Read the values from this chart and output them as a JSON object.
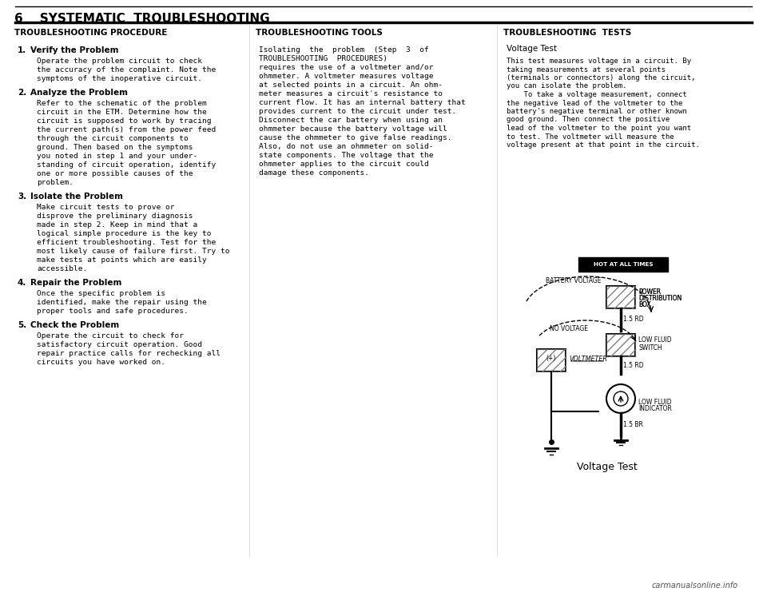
{
  "page_header": "6    SYSTEMATIC  TROUBLESHOOTING",
  "bg_color": "#ffffff",
  "col1_header": "TROUBLESHOOTING PROCEDURE",
  "col1_items": [
    {
      "num": "1.",
      "bold": "Verify the Problem",
      "body": "Operate the problem circuit to check\nthe accuracy of the complaint. Note the\nsymptoms of the inoperative circuit."
    },
    {
      "num": "2.",
      "bold": "Analyze the Problem",
      "body": "Refer to the schematic of the problem\ncircuit in the ETM. Determine how the\ncircuit is supposed to work by tracing\nthe current path(s) from the power feed\nthrough the circuit components to\nground. Then based on the symptoms\nyou noted in step 1 and your under-\nstanding of circuit operation, identify\none or more possible causes of the\nproblem."
    },
    {
      "num": "3.",
      "bold": "Isolate the Problem",
      "body": "Make circuit tests to prove or\ndisprove the preliminary diagnosis\nmade in step 2. Keep in mind that a\nlogical simple procedure is the key to\nefficient troubleshooting. Test for the\nmost likely cause of failure first. Try to\nmake tests at points which are easily\naccessible."
    },
    {
      "num": "4.",
      "bold": "Repair the Problem",
      "body": "Once the specific problem is\nidentified, make the repair using the\nproper tools and safe procedures."
    },
    {
      "num": "5.",
      "bold": "Check the Problem",
      "body": "Operate the circuit to check for\nsatisfactory circuit operation. Good\nrepair practice calls for rechecking all\ncircuits you have worked on."
    }
  ],
  "col2_header": "TROUBLESHOOTING TOOLS",
  "col2_body": "Isolating  the  problem  (Step  3  of\nTROUBLESHOOTING  PROCEDURES)\nrequires the use of a voltmeter and/or\nohmmeter. A voltmeter measures voltage\nat selected points in a circuit. An ohm-\nmeter measures a circuit's resistance to\ncurrent flow. It has an internal battery that\nprovides current to the circuit under test.\nDisconnect the car battery when using an\nohmmeter because the battery voltage will\ncause the ohmmeter to give false readings.\nAlso, do not use an ohmmeter on solid-\nstate components. The voltage that the\nohmmeter applies to the circuit could\ndamage these components.",
  "col2_bold_words": [
    "voltmeter",
    "ohmmeter"
  ],
  "col3_header": "TROUBLESHOOTING  TESTS",
  "col3_subheader": "Voltage Test",
  "col3_body": "This test measures voltage in a circuit. By\ntaking measurements at several points\n(terminals or connectors) along the circuit,\nyou can isolate the problem.\n    To take a voltage measurement, connect\nthe negative lead of the voltmeter to the\nbattery's negative terminal or other known\ngood ground. Then connect the positive\nlead of the voltmeter to the point you want\nto test. The voltmeter will measure the\nvoltage present at that point in the circuit.",
  "diagram_caption": "Voltage Test",
  "footer_text": "carmanualsonline.info"
}
